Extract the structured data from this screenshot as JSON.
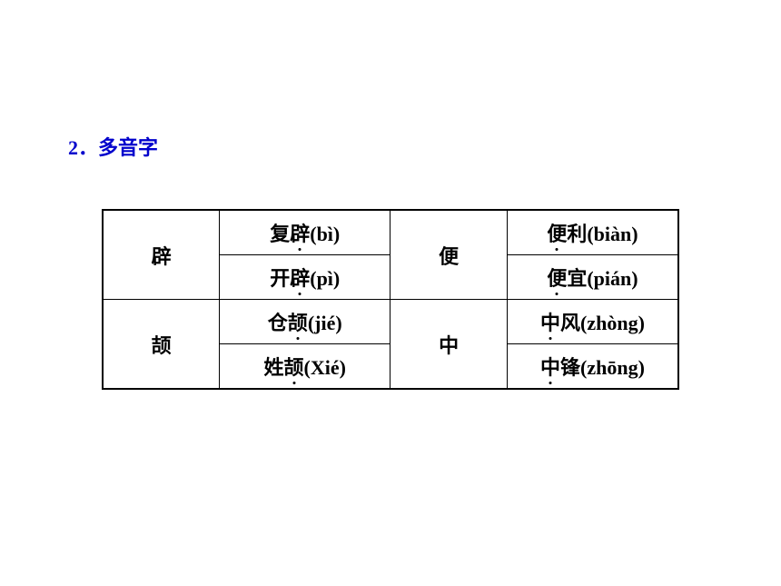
{
  "heading": {
    "number": "2．",
    "title": "多音字"
  },
  "table": {
    "border_color": "#000000",
    "text_color": "#000000",
    "heading_color": "#0000cc",
    "background_color": "#ffffff",
    "font_size": 22,
    "rows": [
      {
        "char1": "辟",
        "word1_prefix": "复",
        "word1_dotted": "辟",
        "word1_pinyin": "(bì)",
        "char2": "便",
        "word2_dotted": "便",
        "word2_suffix": "利",
        "word2_pinyin": "(biàn)"
      },
      {
        "word1_prefix": "开",
        "word1_dotted": "辟",
        "word1_pinyin": "(pì)",
        "word2_dotted": "便",
        "word2_suffix": "宜",
        "word2_pinyin": "(pián)"
      },
      {
        "char1": "颉",
        "word1_prefix": "仓",
        "word1_dotted": "颉",
        "word1_pinyin": "(jié)",
        "char2": "中",
        "word2_dotted": "中",
        "word2_suffix": "风",
        "word2_pinyin": "(zhòng)"
      },
      {
        "word1_prefix": "姓",
        "word1_dotted": "颉",
        "word1_pinyin": "(Xié)",
        "word2_dotted": "中",
        "word2_suffix": "锋",
        "word2_pinyin": "(zhōng)"
      }
    ]
  }
}
